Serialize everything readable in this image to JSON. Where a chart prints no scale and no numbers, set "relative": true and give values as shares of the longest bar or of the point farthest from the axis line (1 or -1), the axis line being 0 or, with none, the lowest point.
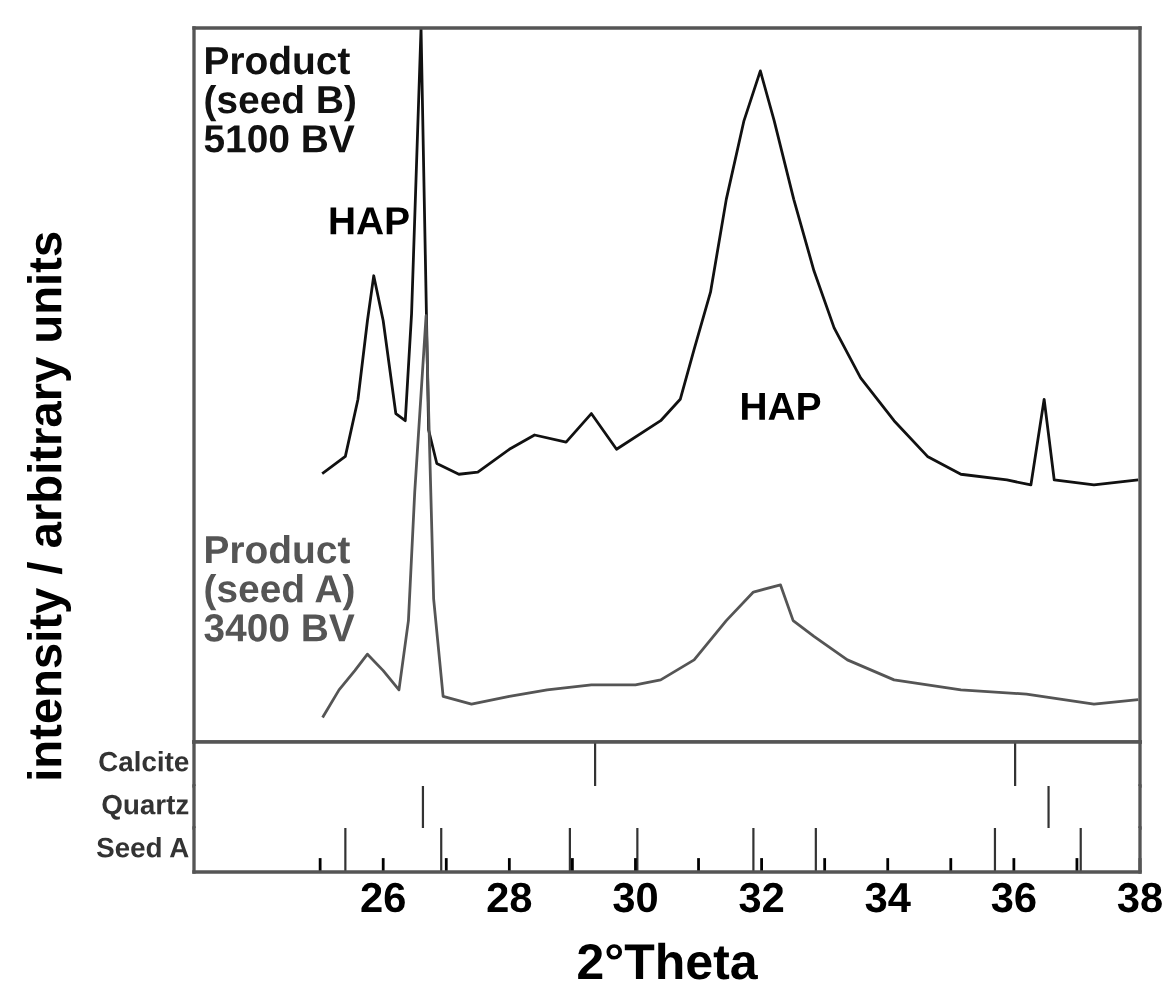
{
  "chart_data": [
    {
      "type": "line",
      "relative": true,
      "ylabel": "intensity / arbitrary units",
      "xlim": [
        23,
        38
      ],
      "tick_labels": false,
      "annotations": [
        "HAP",
        "HAP"
      ],
      "series": [
        {
          "name": "Product\n(seed B)\n5100 BV",
          "color": "#111111",
          "x": [
            25.05,
            25.4,
            25.6,
            25.75,
            25.85,
            26.0,
            26.2,
            26.35,
            26.45,
            26.6,
            26.72,
            26.85,
            27.2,
            27.5,
            28.0,
            28.4,
            28.9,
            29.3,
            29.7,
            30.4,
            30.71,
            30.93,
            31.19,
            31.44,
            31.72,
            31.98,
            32.2,
            32.51,
            32.83,
            33.15,
            33.57,
            34.1,
            34.63,
            35.16,
            35.89,
            36.27,
            36.48,
            36.64,
            37.27,
            37.95
          ],
          "values": [
            0.377,
            0.4,
            0.48,
            0.59,
            0.653,
            0.59,
            0.46,
            0.45,
            0.6,
            1,
            0.437,
            0.39,
            0.375,
            0.378,
            0.41,
            0.43,
            0.42,
            0.46,
            0.41,
            0.45,
            0.48,
            0.55,
            0.63,
            0.76,
            0.87,
            0.94,
            0.87,
            0.76,
            0.66,
            0.58,
            0.51,
            0.45,
            0.4,
            0.375,
            0.367,
            0.36,
            0.48,
            0.367,
            0.36,
            0.367
          ]
        },
        {
          "name": "Product\n(seed A)\n3400 BV",
          "color": "#555555",
          "x": [
            25.05,
            25.3,
            25.55,
            25.75,
            26.0,
            26.25,
            26.4,
            26.5,
            26.68,
            26.8,
            26.95,
            27.4,
            28.0,
            28.6,
            29.3,
            30.0,
            30.4,
            30.93,
            31.44,
            31.87,
            32.3,
            32.5,
            32.83,
            33.36,
            34.1,
            35.16,
            36.2,
            37.27,
            37.95
          ],
          "values": [
            0.036,
            0.073,
            0.1,
            0.123,
            0.1,
            0.073,
            0.17,
            0.35,
            0.597,
            0.2,
            0.064,
            0.053,
            0.064,
            0.073,
            0.08,
            0.08,
            0.087,
            0.115,
            0.17,
            0.21,
            0.22,
            0.17,
            0.148,
            0.115,
            0.087,
            0.073,
            0.067,
            0.053,
            0.059
          ]
        }
      ]
    },
    {
      "type": "bar",
      "relative": true,
      "xlim": [
        23,
        38
      ],
      "tick_labels": false,
      "series": [
        {
          "name": "Calcite",
          "color": "#333333",
          "x": [
            29.36,
            36.02
          ],
          "values": [
            1,
            1
          ]
        }
      ]
    },
    {
      "type": "bar",
      "relative": true,
      "xlim": [
        23,
        38
      ],
      "tick_labels": false,
      "series": [
        {
          "name": "Quartz",
          "color": "#333333",
          "x": [
            26.63,
            36.55
          ],
          "values": [
            1,
            1
          ]
        }
      ]
    },
    {
      "type": "bar",
      "relative": true,
      "xlim": [
        23,
        38
      ],
      "tick_labels": "x",
      "xlabel": "2°Theta",
      "xticks": [
        {
          "value": 25,
          "label": null
        },
        26,
        {
          "value": 27,
          "label": null
        },
        28,
        {
          "value": 29,
          "label": null
        },
        30,
        {
          "value": 31,
          "label": null
        },
        32,
        {
          "value": 33,
          "label": null
        },
        34,
        {
          "value": 35,
          "label": null
        },
        36,
        {
          "value": 37,
          "label": null
        },
        38
      ],
      "series": [
        {
          "name": "Seed A",
          "color": "#333333",
          "x": [
            25.4,
            26.92,
            28.96,
            30.03,
            31.87,
            32.86,
            35.7,
            37.06
          ],
          "values": [
            1,
            1,
            1,
            1,
            1,
            1,
            1,
            1
          ]
        }
      ]
    }
  ]
}
